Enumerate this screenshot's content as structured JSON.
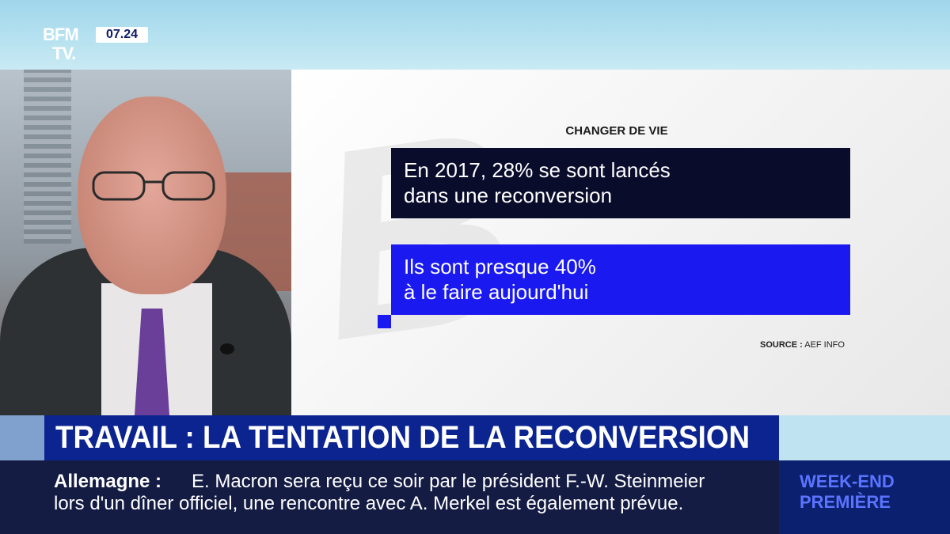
{
  "channel": {
    "logo_line1": "BFM",
    "logo_line2": "TV.",
    "time": "07.24"
  },
  "graphic": {
    "kicker": "CHANGER DE VIE",
    "stat_dark_line1": "En 2017, 28% se sont lancés",
    "stat_dark_line2": "dans une reconversion",
    "stat_blue_line1": "Ils sont presque 40%",
    "stat_blue_line2": "à le faire aujourd'hui",
    "source_label": "SOURCE :",
    "source_name": "AEF INFO"
  },
  "headline": {
    "text": "TRAVAIL : LA TENTATION DE LA RECONVERSION"
  },
  "ticker": {
    "topic": "Allemagne :",
    "line1": "E. Macron sera reçu ce soir par le président F.-W. Steinmeier",
    "line2": "lors d'un dîner officiel, une rencontre avec A. Merkel est également prévue."
  },
  "show": {
    "line1": "WEEK-END",
    "line2": "PREMIÈRE"
  },
  "colors": {
    "headline_bg": "#0b2490",
    "ticker_bg": "#151c44",
    "stat_dark": "#0a0c2c",
    "stat_blue": "#1a19f0",
    "show_text": "#5a74ff"
  }
}
